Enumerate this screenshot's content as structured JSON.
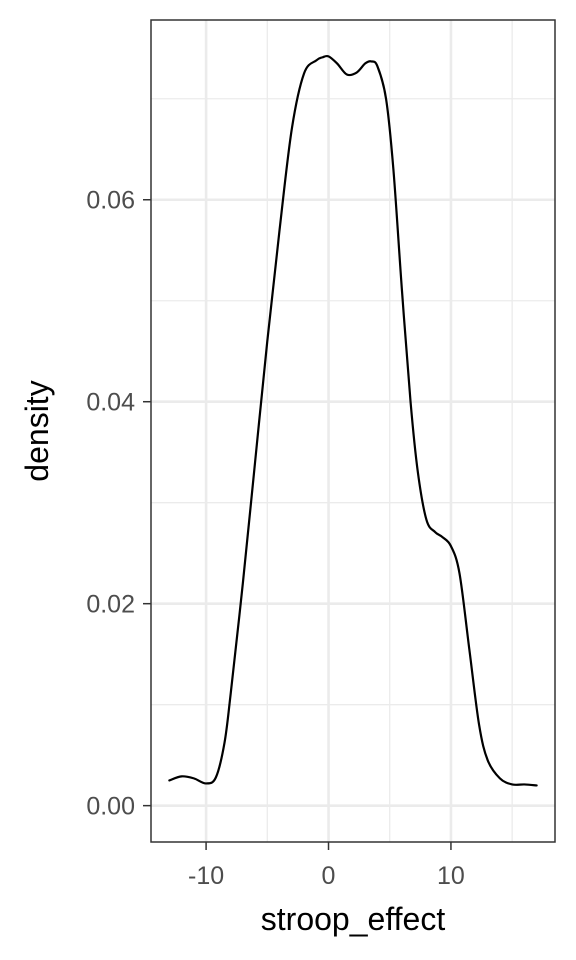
{
  "chart_data": {
    "type": "line",
    "title": "",
    "xlabel": "stroop_effect",
    "ylabel": "density",
    "xlim": [
      -14.5,
      18.5
    ],
    "ylim": [
      -0.0036,
      0.0778
    ],
    "x_ticks": [
      -10,
      0,
      10
    ],
    "x_tick_labels": [
      "-10",
      "0",
      "10"
    ],
    "y_ticks": [
      0.0,
      0.02,
      0.04,
      0.06
    ],
    "y_tick_labels": [
      "0.00",
      "0.02",
      "0.04",
      "0.06"
    ],
    "grid": true,
    "legend": "none",
    "line_color": "#000000",
    "panel_border_color": "#333333",
    "grid_major_color": "#ebebeb",
    "series": [
      {
        "x": [
          -13,
          -12,
          -11,
          -10,
          -9.2,
          -8.5,
          -8,
          -7,
          -6,
          -5,
          -4,
          -3,
          -2,
          -1,
          -0.5,
          0,
          0.7,
          1.5,
          2.3,
          3,
          3.5,
          4,
          4.7,
          5.3,
          6,
          6.7,
          7.3,
          8,
          8.7,
          9.3,
          10,
          10.7,
          11.5,
          12.3,
          13,
          14,
          15,
          16,
          17
        ],
        "y": [
          0.0025,
          0.0029,
          0.0027,
          0.0022,
          0.0028,
          0.0062,
          0.011,
          0.022,
          0.034,
          0.046,
          0.057,
          0.067,
          0.0725,
          0.0738,
          0.0741,
          0.0742,
          0.0735,
          0.0724,
          0.0726,
          0.0735,
          0.0737,
          0.0732,
          0.07,
          0.063,
          0.051,
          0.04,
          0.033,
          0.0283,
          0.0271,
          0.0266,
          0.0257,
          0.023,
          0.0155,
          0.008,
          0.0045,
          0.0027,
          0.0021,
          0.0021,
          0.002
        ]
      }
    ]
  }
}
